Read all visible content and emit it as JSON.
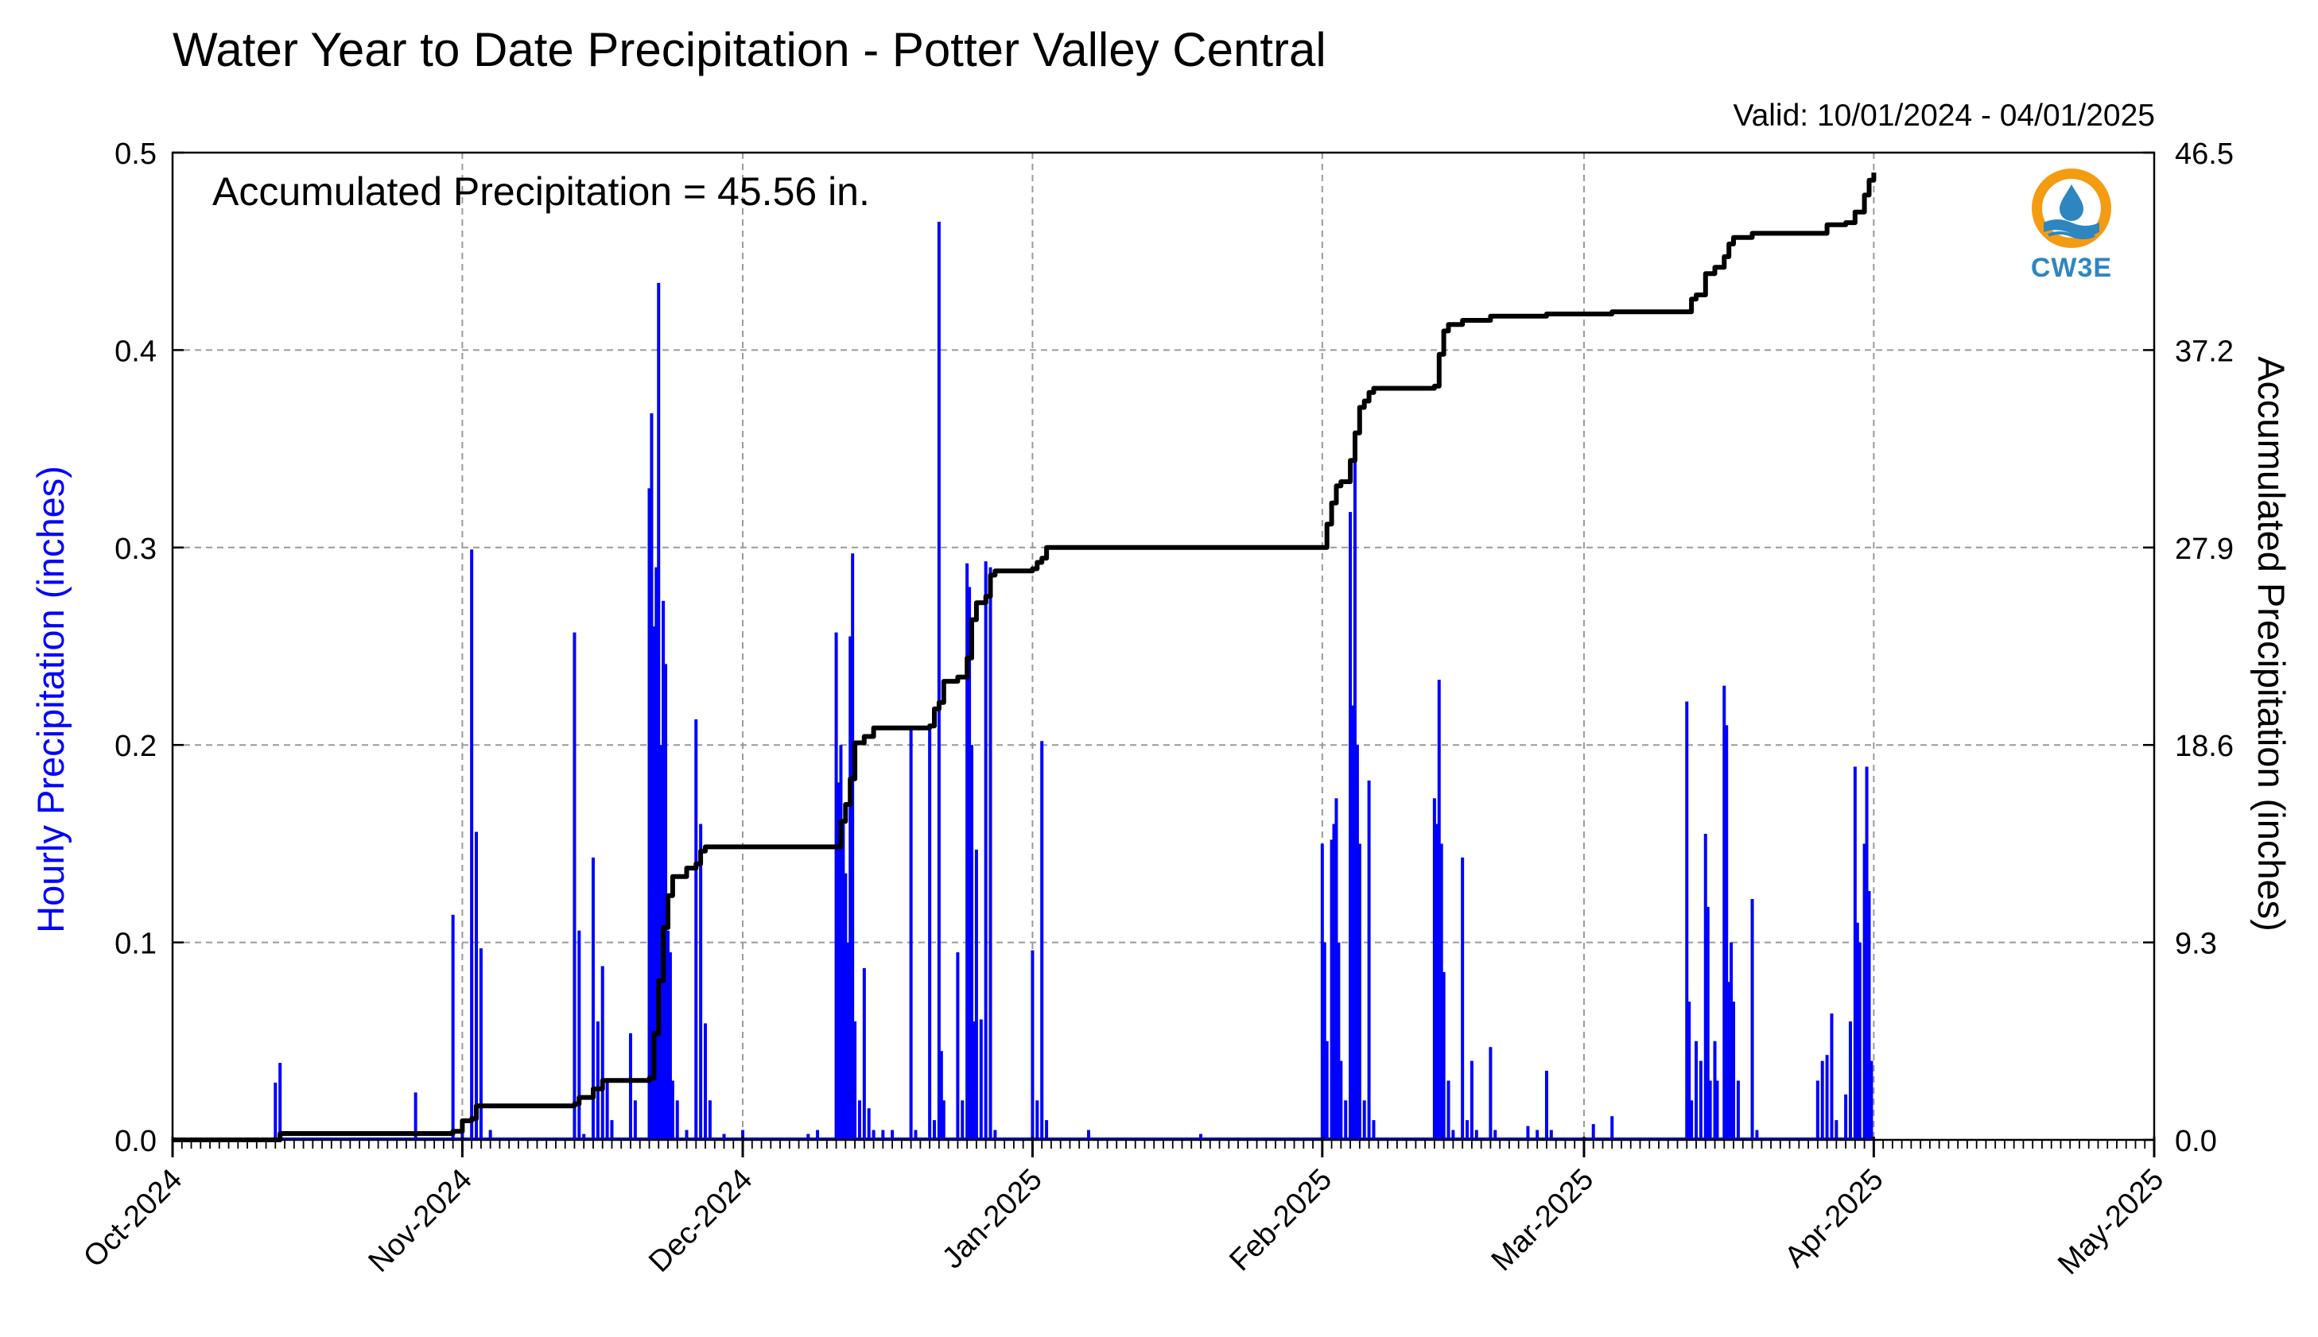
{
  "chart_data": {
    "type": "bar",
    "title": "Water Year to Date Precipitation - Potter Valley Central",
    "valid_label": "Valid: 10/01/2024 - 04/01/2025",
    "annotation": "Accumulated Precipitation = 45.56 in.",
    "ylabel_left": "Hourly Precipitation (inches)",
    "ylabel_right": "Accumulated Precipitation (inches)",
    "x_range": [
      "2024-10-01",
      "2025-05-01"
    ],
    "ylim_left": [
      0,
      0.5
    ],
    "ylim_right": [
      0,
      46.5
    ],
    "left_ticks": [
      "0.0",
      "0.1",
      "0.2",
      "0.3",
      "0.4",
      "0.5"
    ],
    "right_ticks": [
      "0.0",
      "9.3",
      "18.6",
      "27.9",
      "37.2",
      "46.5"
    ],
    "x_ticks": [
      {
        "label": "Oct-2024",
        "date": "2024-10-01"
      },
      {
        "label": "Nov-2024",
        "date": "2024-11-01"
      },
      {
        "label": "Dec-2024",
        "date": "2024-12-01"
      },
      {
        "label": "Jan-2025",
        "date": "2025-01-01"
      },
      {
        "label": "Feb-2025",
        "date": "2025-02-01"
      },
      {
        "label": "Mar-2025",
        "date": "2025-03-01"
      },
      {
        "label": "Apr-2025",
        "date": "2025-04-01"
      },
      {
        "label": "May-2025",
        "date": "2025-05-01"
      }
    ],
    "grid": true,
    "series": [
      {
        "type": "bar",
        "color": "#0000ff",
        "points": [
          [
            "2024-10-12",
            0.029
          ],
          [
            "2024-10-12 12:00",
            0.039
          ],
          [
            "2024-10-27",
            0.024
          ],
          [
            "2024-10-31",
            0.114
          ],
          [
            "2024-11-01",
            0.01
          ],
          [
            "2024-11-02",
            0.299
          ],
          [
            "2024-11-02 12:00",
            0.156
          ],
          [
            "2024-11-03",
            0.097
          ],
          [
            "2024-11-04",
            0.005
          ],
          [
            "2024-11-13",
            0.257
          ],
          [
            "2024-11-13 12:00",
            0.106
          ],
          [
            "2024-11-14",
            0.003
          ],
          [
            "2024-11-15",
            0.143
          ],
          [
            "2024-11-15 12:00",
            0.06
          ],
          [
            "2024-11-16",
            0.088
          ],
          [
            "2024-11-16 12:00",
            0.03
          ],
          [
            "2024-11-17",
            0.01
          ],
          [
            "2024-11-19",
            0.054
          ],
          [
            "2024-11-19 12:00",
            0.02
          ],
          [
            "2024-11-21",
            0.33
          ],
          [
            "2024-11-21 06:00",
            0.368
          ],
          [
            "2024-11-21 12:00",
            0.26
          ],
          [
            "2024-11-21 18:00",
            0.29
          ],
          [
            "2024-11-22",
            0.434
          ],
          [
            "2024-11-22 06:00",
            0.2
          ],
          [
            "2024-11-22 12:00",
            0.273
          ],
          [
            "2024-11-22 18:00",
            0.241
          ],
          [
            "2024-11-23",
            0.106
          ],
          [
            "2024-11-23 06:00",
            0.095
          ],
          [
            "2024-11-23 12:00",
            0.03
          ],
          [
            "2024-11-24",
            0.02
          ],
          [
            "2024-11-25",
            0.005
          ],
          [
            "2024-11-26",
            0.213
          ],
          [
            "2024-11-26 12:00",
            0.16
          ],
          [
            "2024-11-27",
            0.059
          ],
          [
            "2024-11-27 12:00",
            0.02
          ],
          [
            "2024-11-29",
            0.003
          ],
          [
            "2024-12-01",
            0.005
          ],
          [
            "2024-12-08",
            0.003
          ],
          [
            "2024-12-09",
            0.005
          ],
          [
            "2024-12-11",
            0.257
          ],
          [
            "2024-12-11 06:00",
            0.181
          ],
          [
            "2024-12-11 12:00",
            0.2
          ],
          [
            "2024-12-11 18:00",
            0.16
          ],
          [
            "2024-12-12",
            0.135
          ],
          [
            "2024-12-12 06:00",
            0.1
          ],
          [
            "2024-12-12 12:00",
            0.255
          ],
          [
            "2024-12-12 18:00",
            0.297
          ],
          [
            "2024-12-13",
            0.06
          ],
          [
            "2024-12-13 12:00",
            0.02
          ],
          [
            "2024-12-14",
            0.087
          ],
          [
            "2024-12-14 12:00",
            0.016
          ],
          [
            "2024-12-15",
            0.005
          ],
          [
            "2024-12-16",
            0.005
          ],
          [
            "2024-12-17",
            0.005
          ],
          [
            "2024-12-19",
            0.208
          ],
          [
            "2024-12-19 12:00",
            0.005
          ],
          [
            "2024-12-21",
            0.209
          ],
          [
            "2024-12-21 12:00",
            0.01
          ],
          [
            "2024-12-22",
            0.465
          ],
          [
            "2024-12-22 06:00",
            0.045
          ],
          [
            "2024-12-22 12:00",
            0.02
          ],
          [
            "2024-12-24",
            0.095
          ],
          [
            "2024-12-24 12:00",
            0.02
          ],
          [
            "2024-12-25",
            0.292
          ],
          [
            "2024-12-25 06:00",
            0.28
          ],
          [
            "2024-12-25 12:00",
            0.2
          ],
          [
            "2024-12-25 18:00",
            0.06
          ],
          [
            "2024-12-26",
            0.147
          ],
          [
            "2024-12-26 12:00",
            0.061
          ],
          [
            "2024-12-27",
            0.293
          ],
          [
            "2024-12-27 12:00",
            0.29
          ],
          [
            "2024-12-28",
            0.005
          ],
          [
            "2025-01-01",
            0.096
          ],
          [
            "2025-01-01 12:00",
            0.02
          ],
          [
            "2025-01-02",
            0.202
          ],
          [
            "2025-01-02 12:00",
            0.01
          ],
          [
            "2025-01-07",
            0.005
          ],
          [
            "2025-01-19",
            0.003
          ],
          [
            "2025-02-01",
            0.15
          ],
          [
            "2025-02-01 06:00",
            0.1
          ],
          [
            "2025-02-01 12:00",
            0.05
          ],
          [
            "2025-02-02",
            0.152
          ],
          [
            "2025-02-02 06:00",
            0.16
          ],
          [
            "2025-02-02 12:00",
            0.173
          ],
          [
            "2025-02-02 18:00",
            0.1
          ],
          [
            "2025-02-03",
            0.04
          ],
          [
            "2025-02-03 12:00",
            0.02
          ],
          [
            "2025-02-04",
            0.318
          ],
          [
            "2025-02-04 06:00",
            0.22
          ],
          [
            "2025-02-04 12:00",
            0.35
          ],
          [
            "2025-02-04 18:00",
            0.2
          ],
          [
            "2025-02-05",
            0.15
          ],
          [
            "2025-02-05 12:00",
            0.02
          ],
          [
            "2025-02-06",
            0.182
          ],
          [
            "2025-02-06 12:00",
            0.01
          ],
          [
            "2025-02-13",
            0.173
          ],
          [
            "2025-02-13 06:00",
            0.16
          ],
          [
            "2025-02-13 12:00",
            0.233
          ],
          [
            "2025-02-13 18:00",
            0.15
          ],
          [
            "2025-02-14",
            0.085
          ],
          [
            "2025-02-14 12:00",
            0.03
          ],
          [
            "2025-02-15",
            0.005
          ],
          [
            "2025-02-16",
            0.143
          ],
          [
            "2025-02-16 12:00",
            0.01
          ],
          [
            "2025-02-17",
            0.04
          ],
          [
            "2025-02-17 12:00",
            0.005
          ],
          [
            "2025-02-19",
            0.047
          ],
          [
            "2025-02-19 12:00",
            0.005
          ],
          [
            "2025-02-23",
            0.007
          ],
          [
            "2025-02-24",
            0.005
          ],
          [
            "2025-02-25",
            0.035
          ],
          [
            "2025-02-25 12:00",
            0.005
          ],
          [
            "2025-03-02",
            0.008
          ],
          [
            "2025-03-04",
            0.012
          ],
          [
            "2025-03-12",
            0.222
          ],
          [
            "2025-03-12 06:00",
            0.07
          ],
          [
            "2025-03-12 12:00",
            0.02
          ],
          [
            "2025-03-13",
            0.05
          ],
          [
            "2025-03-13 12:00",
            0.04
          ],
          [
            "2025-03-14",
            0.155
          ],
          [
            "2025-03-14 06:00",
            0.118
          ],
          [
            "2025-03-14 12:00",
            0.03
          ],
          [
            "2025-03-15",
            0.05
          ],
          [
            "2025-03-15 06:00",
            0.03
          ],
          [
            "2025-03-16",
            0.23
          ],
          [
            "2025-03-16 06:00",
            0.21
          ],
          [
            "2025-03-16 12:00",
            0.08
          ],
          [
            "2025-03-16 18:00",
            0.1
          ],
          [
            "2025-03-17",
            0.07
          ],
          [
            "2025-03-17 12:00",
            0.03
          ],
          [
            "2025-03-19",
            0.122
          ],
          [
            "2025-03-19 12:00",
            0.005
          ],
          [
            "2025-03-26",
            0.03
          ],
          [
            "2025-03-26 12:00",
            0.04
          ],
          [
            "2025-03-27",
            0.043
          ],
          [
            "2025-03-27 12:00",
            0.064
          ],
          [
            "2025-03-28",
            0.01
          ],
          [
            "2025-03-29",
            0.023
          ],
          [
            "2025-03-29 12:00",
            0.06
          ],
          [
            "2025-03-30",
            0.189
          ],
          [
            "2025-03-30 06:00",
            0.11
          ],
          [
            "2025-03-30 12:00",
            0.1
          ],
          [
            "2025-03-31",
            0.15
          ],
          [
            "2025-03-31 06:00",
            0.189
          ],
          [
            "2025-03-31 12:00",
            0.126
          ],
          [
            "2025-03-31 18:00",
            0.04
          ]
        ]
      },
      {
        "type": "line",
        "color": "#000000",
        "axis": "right",
        "points": [
          [
            "2024-10-01",
            0.0
          ],
          [
            "2024-10-12",
            0.0
          ],
          [
            "2024-10-12 12:00",
            0.3
          ],
          [
            "2024-10-31",
            0.4
          ],
          [
            "2024-11-01",
            0.9
          ],
          [
            "2024-11-02",
            1.0
          ],
          [
            "2024-11-02 12:00",
            1.6
          ],
          [
            "2024-11-13",
            1.7
          ],
          [
            "2024-11-13 12:00",
            2.0
          ],
          [
            "2024-11-15",
            2.4
          ],
          [
            "2024-11-16",
            2.8
          ],
          [
            "2024-11-21",
            2.9
          ],
          [
            "2024-11-21 12:00",
            5.0
          ],
          [
            "2024-11-22",
            7.5
          ],
          [
            "2024-11-22 12:00",
            10.0
          ],
          [
            "2024-11-23",
            11.5
          ],
          [
            "2024-11-23 12:00",
            12.4
          ],
          [
            "2024-11-25",
            12.8
          ],
          [
            "2024-11-26",
            13.0
          ],
          [
            "2024-11-26 12:00",
            13.6
          ],
          [
            "2024-11-27",
            13.8
          ],
          [
            "2024-12-11",
            13.8
          ],
          [
            "2024-12-11 12:00",
            15.0
          ],
          [
            "2024-12-12",
            15.8
          ],
          [
            "2024-12-12 12:00",
            17.0
          ],
          [
            "2024-12-13",
            18.7
          ],
          [
            "2024-12-14",
            19.0
          ],
          [
            "2024-12-15",
            19.4
          ],
          [
            "2024-12-21",
            19.5
          ],
          [
            "2024-12-21 12:00",
            20.3
          ],
          [
            "2024-12-22",
            20.6
          ],
          [
            "2024-12-22 12:00",
            21.6
          ],
          [
            "2024-12-24",
            21.8
          ],
          [
            "2024-12-25",
            22.7
          ],
          [
            "2024-12-25 12:00",
            24.5
          ],
          [
            "2024-12-26",
            25.3
          ],
          [
            "2024-12-27",
            25.6
          ],
          [
            "2024-12-27 12:00",
            26.6
          ],
          [
            "2024-12-28",
            26.8
          ],
          [
            "2025-01-01",
            26.9
          ],
          [
            "2025-01-01 12:00",
            27.2
          ],
          [
            "2025-01-02",
            27.4
          ],
          [
            "2025-01-02 12:00",
            27.9
          ],
          [
            "2025-02-01",
            27.9
          ],
          [
            "2025-02-01 12:00",
            29.0
          ],
          [
            "2025-02-02",
            30.0
          ],
          [
            "2025-02-02 12:00",
            30.8
          ],
          [
            "2025-02-03",
            31.0
          ],
          [
            "2025-02-04",
            32.0
          ],
          [
            "2025-02-04 12:00",
            33.3
          ],
          [
            "2025-02-05",
            34.5
          ],
          [
            "2025-02-05 12:00",
            34.8
          ],
          [
            "2025-02-06",
            35.2
          ],
          [
            "2025-02-06 12:00",
            35.4
          ],
          [
            "2025-02-13",
            35.5
          ],
          [
            "2025-02-13 12:00",
            37.0
          ],
          [
            "2025-02-14",
            38.1
          ],
          [
            "2025-02-14 12:00",
            38.4
          ],
          [
            "2025-02-16",
            38.6
          ],
          [
            "2025-02-19",
            38.8
          ],
          [
            "2025-02-25",
            38.9
          ],
          [
            "2025-03-04",
            39.0
          ],
          [
            "2025-03-12",
            39.0
          ],
          [
            "2025-03-12 12:00",
            39.6
          ],
          [
            "2025-03-13",
            39.8
          ],
          [
            "2025-03-14",
            40.8
          ],
          [
            "2025-03-15",
            41.1
          ],
          [
            "2025-03-16",
            41.6
          ],
          [
            "2025-03-16 12:00",
            42.2
          ],
          [
            "2025-03-17",
            42.5
          ],
          [
            "2025-03-19",
            42.7
          ],
          [
            "2025-03-26",
            42.7
          ],
          [
            "2025-03-27",
            43.1
          ],
          [
            "2025-03-29",
            43.2
          ],
          [
            "2025-03-30",
            43.7
          ],
          [
            "2025-03-31",
            44.5
          ],
          [
            "2025-03-31 12:00",
            45.2
          ],
          [
            "2025-04-01",
            45.56
          ]
        ]
      }
    ]
  }
}
